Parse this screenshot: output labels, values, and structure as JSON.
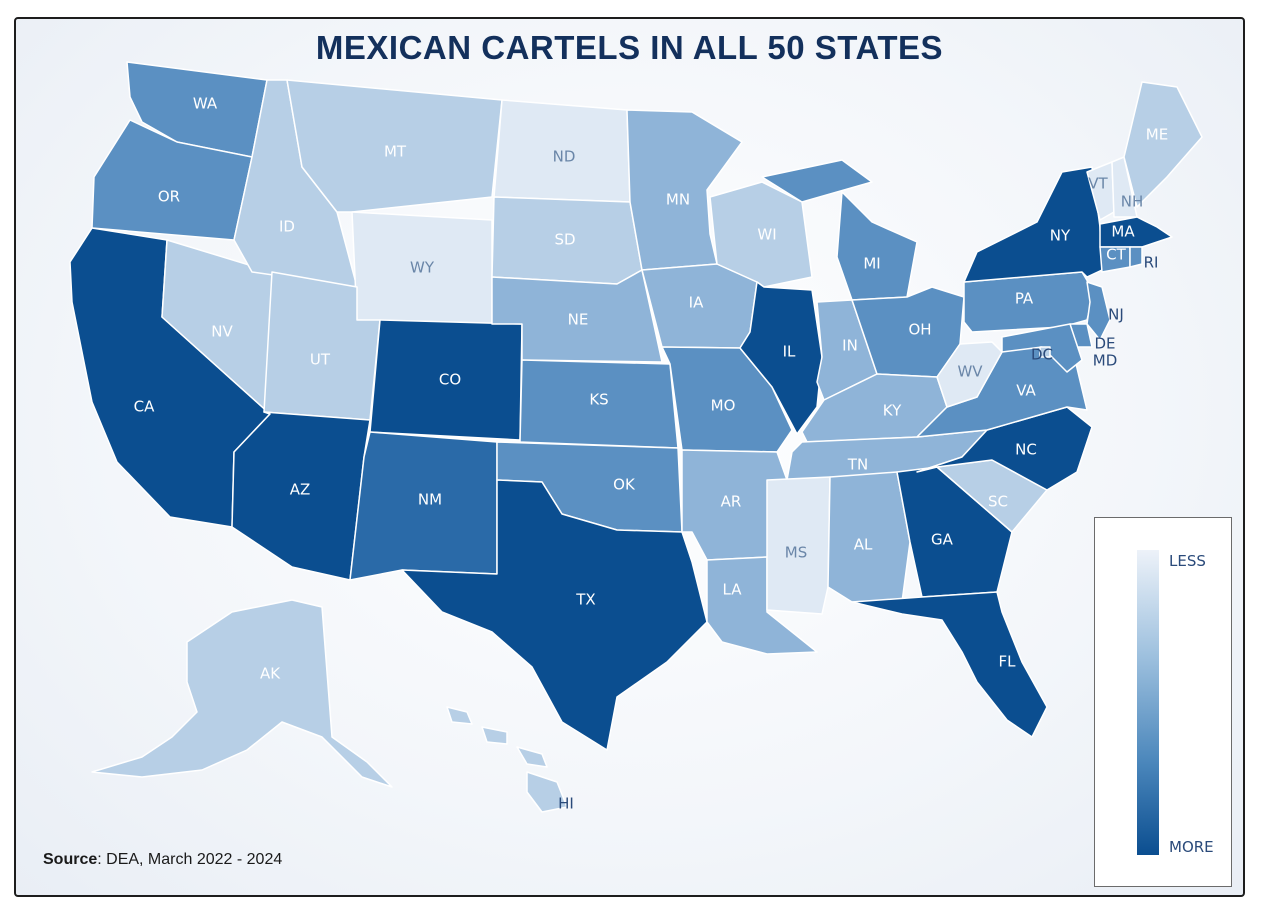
{
  "title": "MEXICAN CARTELS IN ALL 50 STATES",
  "source": {
    "label": "Source",
    "text": ": DEA, March 2022 - 2024"
  },
  "legend": {
    "less": "LESS",
    "more": "MORE"
  },
  "colors": {
    "less": "#e8eef7",
    "more": "#0b4e90",
    "title": "#13305c"
  },
  "states": [
    {
      "code": "WA",
      "level": 3
    },
    {
      "code": "OR",
      "level": 3
    },
    {
      "code": "CA",
      "level": 5
    },
    {
      "code": "NV",
      "level": 1
    },
    {
      "code": "ID",
      "level": 1
    },
    {
      "code": "MT",
      "level": 1
    },
    {
      "code": "WY",
      "level": 0
    },
    {
      "code": "UT",
      "level": 1
    },
    {
      "code": "AZ",
      "level": 5
    },
    {
      "code": "CO",
      "level": 5
    },
    {
      "code": "NM",
      "level": 4
    },
    {
      "code": "ND",
      "level": 0
    },
    {
      "code": "SD",
      "level": 1
    },
    {
      "code": "NE",
      "level": 2
    },
    {
      "code": "KS",
      "level": 3
    },
    {
      "code": "OK",
      "level": 3
    },
    {
      "code": "TX",
      "level": 5
    },
    {
      "code": "MN",
      "level": 2
    },
    {
      "code": "IA",
      "level": 2
    },
    {
      "code": "MO",
      "level": 3
    },
    {
      "code": "AR",
      "level": 2
    },
    {
      "code": "LA",
      "level": 2
    },
    {
      "code": "WI",
      "level": 1
    },
    {
      "code": "IL",
      "level": 5
    },
    {
      "code": "MI",
      "level": 3
    },
    {
      "code": "IN",
      "level": 2
    },
    {
      "code": "OH",
      "level": 3
    },
    {
      "code": "KY",
      "level": 2
    },
    {
      "code": "TN",
      "level": 2
    },
    {
      "code": "MS",
      "level": 0
    },
    {
      "code": "AL",
      "level": 2
    },
    {
      "code": "GA",
      "level": 5
    },
    {
      "code": "FL",
      "level": 5
    },
    {
      "code": "SC",
      "level": 1
    },
    {
      "code": "NC",
      "level": 5
    },
    {
      "code": "VA",
      "level": 3
    },
    {
      "code": "WV",
      "level": 0
    },
    {
      "code": "PA",
      "level": 3
    },
    {
      "code": "NY",
      "level": 5
    },
    {
      "code": "VT",
      "level": 0
    },
    {
      "code": "NH",
      "level": 0
    },
    {
      "code": "ME",
      "level": 1
    },
    {
      "code": "MA",
      "level": 5
    },
    {
      "code": "CT",
      "level": 3
    },
    {
      "code": "RI",
      "level": 3
    },
    {
      "code": "NJ",
      "level": 3
    },
    {
      "code": "DE",
      "level": 3
    },
    {
      "code": "MD",
      "level": 3
    },
    {
      "code": "DC",
      "level": 1
    },
    {
      "code": "AK",
      "level": 1
    },
    {
      "code": "HI",
      "level": 1
    }
  ]
}
